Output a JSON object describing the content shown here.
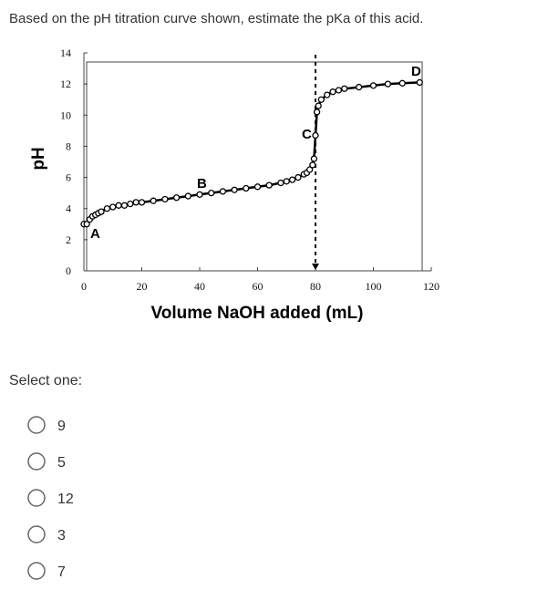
{
  "question": "Based on the pH titration curve shown, estimate the pKa of this acid.",
  "chart": {
    "type": "line",
    "x_label": "Volume NaOH added (mL)",
    "y_label": "pH",
    "x": [
      0,
      1,
      2,
      3,
      4,
      5,
      6,
      8,
      10,
      12,
      14,
      16,
      18,
      20,
      24,
      28,
      32,
      36,
      40,
      44,
      48,
      52,
      56,
      60,
      64,
      68,
      70,
      72,
      74,
      76,
      77,
      78,
      79,
      79.5,
      80,
      80.5,
      81,
      82,
      84,
      86,
      88,
      90,
      95,
      100,
      105,
      110,
      116
    ],
    "y": [
      3.0,
      3.0,
      3.3,
      3.5,
      3.6,
      3.7,
      3.8,
      4.0,
      4.1,
      4.2,
      4.2,
      4.3,
      4.4,
      4.4,
      4.5,
      4.6,
      4.7,
      4.8,
      4.9,
      5.0,
      5.1,
      5.2,
      5.3,
      5.4,
      5.5,
      5.65,
      5.75,
      5.85,
      6.0,
      6.2,
      6.3,
      6.5,
      6.8,
      7.2,
      8.7,
      10.2,
      10.6,
      11.0,
      11.3,
      11.5,
      11.6,
      11.7,
      11.8,
      11.9,
      12.0,
      12.05,
      12.1
    ],
    "color": "#000000",
    "xlim": [
      0,
      120
    ],
    "ylim": [
      0,
      14
    ],
    "xticks": [
      0,
      20,
      40,
      60,
      80,
      100,
      120
    ],
    "yticks": [
      0,
      2,
      4,
      6,
      8,
      10,
      12,
      14
    ],
    "annotations": [
      "A",
      "B",
      "C",
      "D"
    ]
  },
  "prompt": "Select one:",
  "options": [
    "9",
    "5",
    "12",
    "3",
    "7"
  ]
}
